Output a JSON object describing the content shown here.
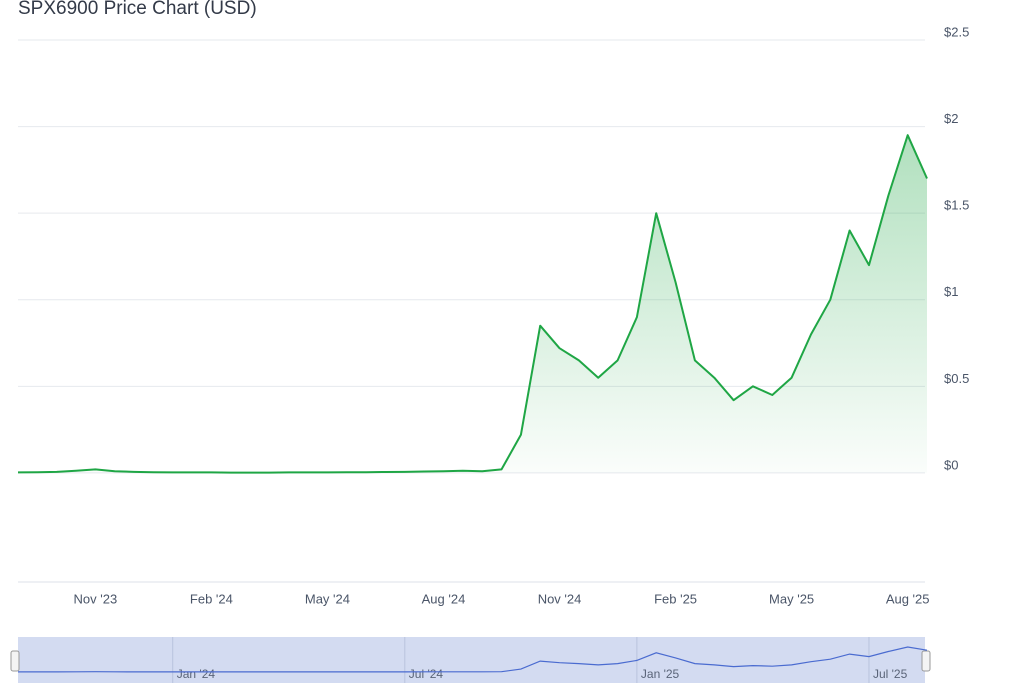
{
  "chart_data": {
    "type": "line",
    "title": "SPX6900 Price Chart (USD)",
    "categories": [
      null,
      null,
      null,
      null,
      "Nov '23",
      null,
      null,
      null,
      null,
      null,
      "Feb '24",
      null,
      null,
      null,
      null,
      null,
      "May '24",
      null,
      null,
      null,
      null,
      null,
      "Aug '24",
      null,
      null,
      null,
      null,
      null,
      "Nov '24",
      null,
      null,
      null,
      null,
      null,
      "Feb '25",
      null,
      null,
      null,
      null,
      null,
      "May '25",
      null,
      null,
      null,
      null,
      null,
      "Aug '25",
      null
    ],
    "series": [
      {
        "name": "SPX6900",
        "color": "#1fa645",
        "values": [
          0.003,
          0.004,
          0.006,
          0.012,
          0.02,
          0.01,
          0.006,
          0.004,
          0.003,
          0.003,
          0.003,
          0.002,
          0.002,
          0.002,
          0.003,
          0.003,
          0.003,
          0.004,
          0.004,
          0.005,
          0.006,
          0.008,
          0.009,
          0.012,
          0.01,
          0.02,
          0.22,
          0.85,
          0.72,
          0.65,
          0.55,
          0.65,
          0.9,
          1.5,
          1.1,
          0.65,
          0.55,
          0.42,
          0.5,
          0.45,
          0.55,
          0.8,
          1.0,
          1.4,
          1.2,
          1.6,
          1.95,
          1.7
        ]
      }
    ],
    "ylim": [
      -0.63,
      2.5
    ],
    "yticks": [
      {
        "value": 0,
        "label": "$0"
      },
      {
        "value": 0.5,
        "label": "$0.5"
      },
      {
        "value": 1,
        "label": "$1"
      },
      {
        "value": 1.5,
        "label": "$1.5"
      },
      {
        "value": 2,
        "label": "$2"
      },
      {
        "value": 2.5,
        "label": "$2.5"
      }
    ],
    "grid": true,
    "navigator": {
      "color": "#4a6bd0",
      "categories": [
        null,
        null,
        null,
        null,
        null,
        null,
        null,
        null,
        "Jan '24",
        null,
        null,
        null,
        null,
        null,
        null,
        null,
        null,
        null,
        null,
        null,
        "Jul '24",
        null,
        null,
        null,
        null,
        null,
        null,
        null,
        null,
        null,
        null,
        null,
        "Jan '25",
        null,
        null,
        null,
        null,
        null,
        null,
        null,
        null,
        null,
        null,
        null,
        "Jul '25",
        null,
        null,
        null
      ]
    }
  }
}
